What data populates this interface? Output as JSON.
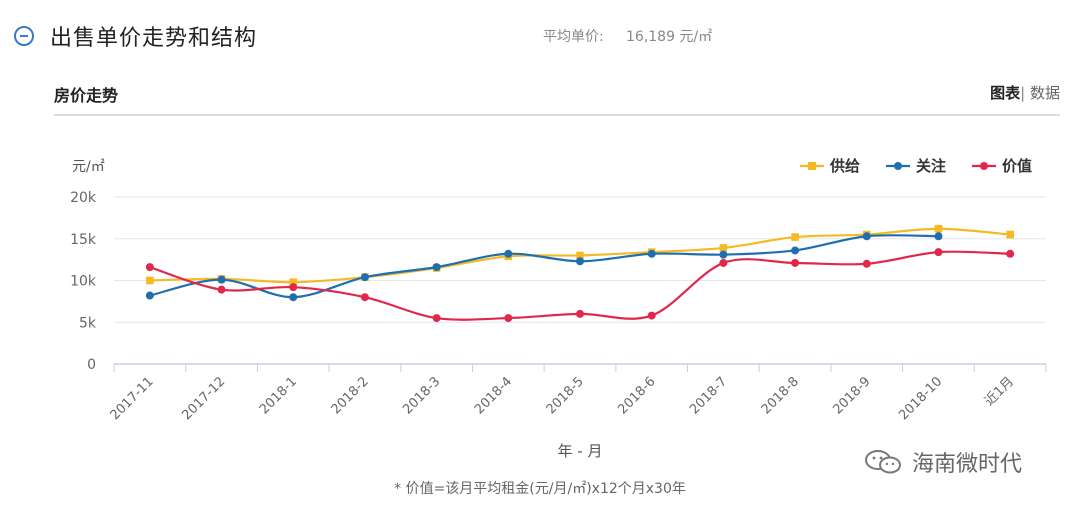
{
  "header": {
    "title": "出售单价走势和结构",
    "avg_label": "平均单价:",
    "avg_value": "16,189 元/㎡"
  },
  "subheader": {
    "title": "房价走势",
    "toggle_chart": "图表",
    "toggle_sep": "|",
    "toggle_data": "数据"
  },
  "colors": {
    "supply": "#f5b923",
    "attention": "#1f6fb0",
    "value": "#e0284a",
    "accent": "#3b78c4"
  },
  "chart_data": {
    "type": "line",
    "ylabel": "元/㎡",
    "xlabel": "年 - 月",
    "ylim": [
      0,
      20000
    ],
    "yticks": [
      0,
      5000,
      10000,
      15000,
      20000
    ],
    "ytick_labels": [
      "0",
      "5k",
      "10k",
      "15k",
      "20k"
    ],
    "grid": true,
    "legend_position": "top-right",
    "categories": [
      "2017-11",
      "2017-12",
      "2018-1",
      "2018-2",
      "2018-3",
      "2018-4",
      "2018-5",
      "2018-6",
      "2018-7",
      "2018-8",
      "2018-9",
      "2018-10",
      "近1月"
    ],
    "series": [
      {
        "name": "供给",
        "color": "#f5b923",
        "marker": "square",
        "values": [
          10000,
          10200,
          9800,
          10400,
          11500,
          12900,
          13000,
          13400,
          13900,
          15200,
          15500,
          16200,
          15500
        ]
      },
      {
        "name": "关注",
        "color": "#1f6fb0",
        "marker": "circle",
        "values": [
          8200,
          10100,
          8000,
          10400,
          11600,
          13200,
          12300,
          13200,
          13100,
          13600,
          15300,
          15300,
          null
        ]
      },
      {
        "name": "价值",
        "color": "#e0284a",
        "marker": "circle",
        "values": [
          11600,
          8900,
          9200,
          8000,
          5500,
          5500,
          6000,
          5800,
          12100,
          12100,
          12000,
          13400,
          13200
        ]
      }
    ]
  },
  "footnote": "* 价值=该月平均租金(元/月/㎡)x12个月x30年",
  "watermark": "海南微时代"
}
